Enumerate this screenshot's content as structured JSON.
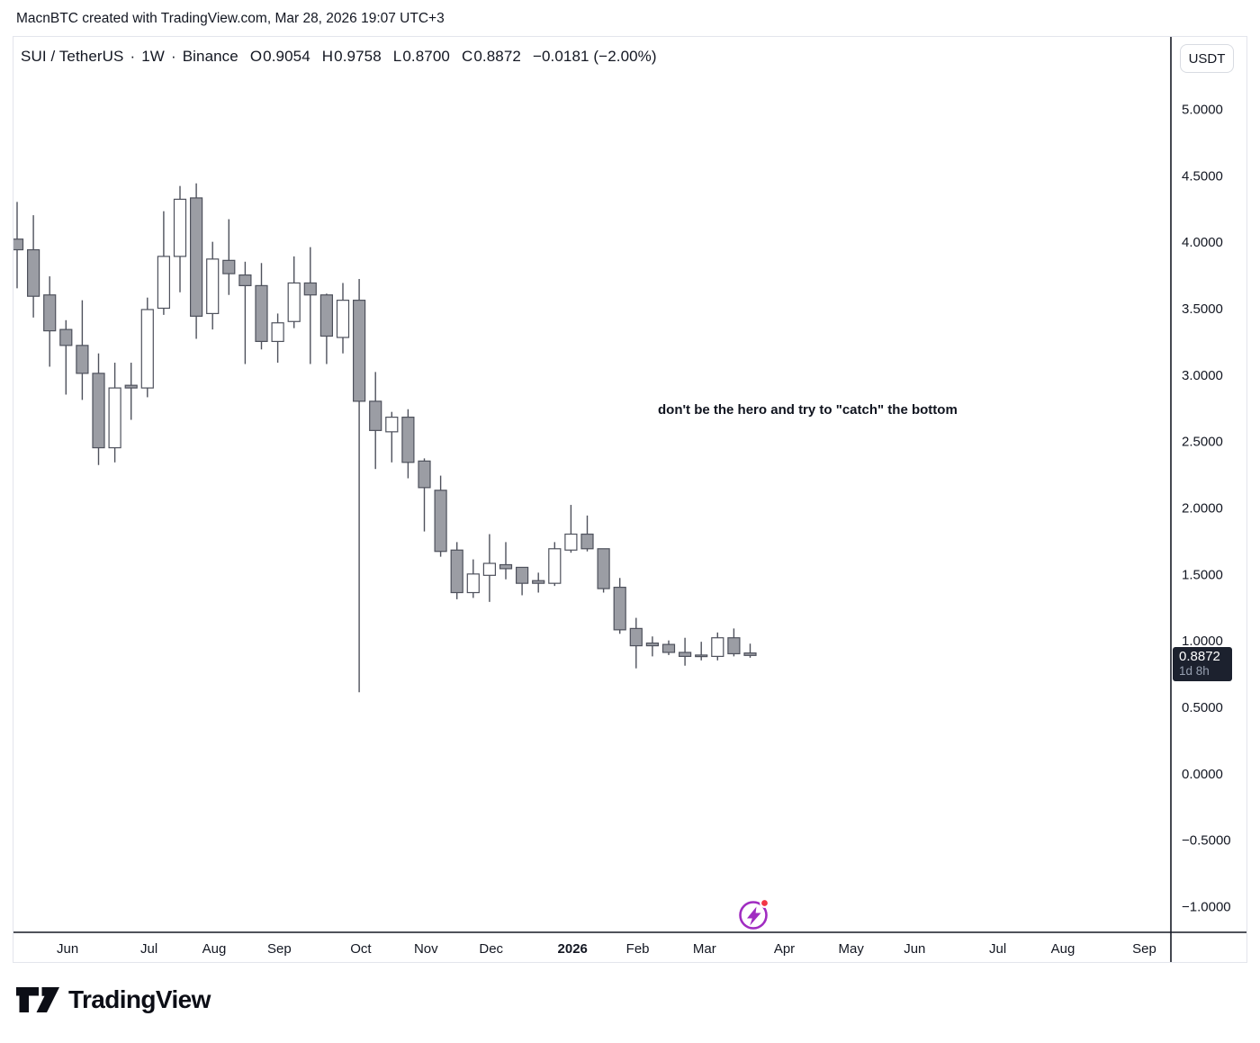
{
  "attribution": "MacnBTC created with TradingView.com, Mar 28, 2026 19:07 UTC+3",
  "symbol_header": {
    "symbol": "SUI / TetherUS",
    "separator": "·",
    "interval": "1W",
    "exchange": "Binance",
    "open_label": "O",
    "open_value": "0.9054",
    "high_label": "H",
    "high_value": "0.9758",
    "low_label": "L",
    "low_value": "0.8700",
    "close_label": "C",
    "close_value": "0.8872",
    "change_value": "−0.0181 (−2.00%)"
  },
  "annotation": {
    "text": "don't be the hero and try to \"catch\" the bottom"
  },
  "price_scale": {
    "currency": "USDT",
    "badge": {
      "price": "0.8872",
      "countdown": "1d 8h"
    }
  },
  "footer": {
    "brand": "TradingView"
  },
  "chart_data": {
    "type": "candlestick",
    "symbol": "SUI / TetherUS",
    "exchange": "Binance",
    "interval": "1W",
    "quote_currency": "USDT",
    "last_bar": {
      "open": 0.9054,
      "high": 0.9758,
      "low": 0.87,
      "close": 0.8872,
      "change": -0.0181,
      "change_pct": -2.0
    },
    "annotation": "don't be the hero and try to \"catch\" the bottom",
    "grid": "off",
    "y_axis": {
      "range": [
        -1.25,
        5.3
      ],
      "tick_interval": 0.5,
      "ticks": [
        "5.0000",
        "4.5000",
        "4.0000",
        "3.5000",
        "3.0000",
        "2.5000",
        "2.0000",
        "1.5000",
        "1.0000",
        "0.5000",
        "0.0000",
        "−0.5000",
        "−1.0000"
      ],
      "first_tick_price": 5.0
    },
    "x_axis": {
      "unit": "week",
      "labels": [
        {
          "text": "Jun",
          "week": 3.1,
          "bold": false
        },
        {
          "text": "Jul",
          "week": 8.1,
          "bold": false
        },
        {
          "text": "Aug",
          "week": 12.1,
          "bold": false
        },
        {
          "text": "Sep",
          "week": 16.1,
          "bold": false
        },
        {
          "text": "Oct",
          "week": 21.1,
          "bold": false
        },
        {
          "text": "Nov",
          "week": 25.1,
          "bold": false
        },
        {
          "text": "Dec",
          "week": 29.1,
          "bold": false
        },
        {
          "text": "2026",
          "week": 34.1,
          "bold": true
        },
        {
          "text": "Feb",
          "week": 38.1,
          "bold": false
        },
        {
          "text": "Mar",
          "week": 42.2,
          "bold": false
        },
        {
          "text": "Apr",
          "week": 47.1,
          "bold": false
        },
        {
          "text": "May",
          "week": 51.2,
          "bold": false
        },
        {
          "text": "Jun",
          "week": 55.1,
          "bold": false
        },
        {
          "text": "Jul",
          "week": 60.2,
          "bold": false
        },
        {
          "text": "Aug",
          "week": 64.2,
          "bold": false
        },
        {
          "text": "Sep",
          "week": 69.2,
          "bold": false
        }
      ]
    },
    "candles": [
      [
        4.02,
        4.3,
        3.65,
        3.94
      ],
      [
        3.94,
        4.2,
        3.43,
        3.59
      ],
      [
        3.6,
        3.74,
        3.06,
        3.33
      ],
      [
        3.34,
        3.41,
        2.85,
        3.22
      ],
      [
        3.22,
        3.56,
        2.81,
        3.01
      ],
      [
        3.01,
        3.16,
        2.32,
        2.45
      ],
      [
        2.45,
        3.09,
        2.34,
        2.9
      ],
      [
        2.92,
        3.09,
        2.66,
        2.9
      ],
      [
        2.9,
        3.58,
        2.83,
        3.49
      ],
      [
        3.5,
        4.23,
        3.45,
        3.89
      ],
      [
        3.89,
        4.42,
        3.62,
        4.32
      ],
      [
        4.33,
        4.44,
        3.27,
        3.44
      ],
      [
        3.46,
        4.0,
        3.34,
        3.87
      ],
      [
        3.86,
        4.17,
        3.6,
        3.76
      ],
      [
        3.75,
        3.85,
        3.08,
        3.67
      ],
      [
        3.67,
        3.84,
        3.19,
        3.25
      ],
      [
        3.25,
        3.46,
        3.09,
        3.39
      ],
      [
        3.4,
        3.89,
        3.35,
        3.69
      ],
      [
        3.69,
        3.96,
        3.08,
        3.6
      ],
      [
        3.6,
        3.61,
        3.08,
        3.29
      ],
      [
        3.28,
        3.69,
        3.16,
        3.56
      ],
      [
        3.56,
        3.72,
        0.61,
        2.8
      ],
      [
        2.8,
        3.02,
        2.29,
        2.58
      ],
      [
        2.57,
        2.72,
        2.34,
        2.68
      ],
      [
        2.68,
        2.74,
        2.22,
        2.34
      ],
      [
        2.35,
        2.37,
        1.82,
        2.15
      ],
      [
        2.13,
        2.24,
        1.63,
        1.67
      ],
      [
        1.68,
        1.74,
        1.31,
        1.36
      ],
      [
        1.36,
        1.61,
        1.32,
        1.5
      ],
      [
        1.49,
        1.8,
        1.29,
        1.58
      ],
      [
        1.57,
        1.74,
        1.46,
        1.54
      ],
      [
        1.55,
        1.55,
        1.34,
        1.43
      ],
      [
        1.45,
        1.51,
        1.36,
        1.43
      ],
      [
        1.43,
        1.74,
        1.41,
        1.69
      ],
      [
        1.68,
        2.02,
        1.66,
        1.8
      ],
      [
        1.8,
        1.94,
        1.67,
        1.69
      ],
      [
        1.69,
        1.69,
        1.36,
        1.39
      ],
      [
        1.4,
        1.47,
        1.05,
        1.08
      ],
      [
        1.09,
        1.17,
        0.79,
        0.96
      ],
      [
        0.98,
        1.03,
        0.88,
        0.96
      ],
      [
        0.97,
        1.0,
        0.89,
        0.91
      ],
      [
        0.91,
        1.02,
        0.81,
        0.88
      ],
      [
        0.89,
        0.99,
        0.85,
        0.88
      ],
      [
        0.88,
        1.06,
        0.85,
        1.02
      ],
      [
        1.02,
        1.09,
        0.88,
        0.9
      ],
      [
        0.9054,
        0.9758,
        0.87,
        0.8872
      ]
    ],
    "colors": {
      "up_fill": "#ffffff",
      "down_fill": "#9b9da4",
      "border": "#4e515c",
      "wick": "#4e515c",
      "axis": "#161a25",
      "text": "#131722",
      "badge_bg": "#1c212e",
      "flash_purple": "#a02cc1",
      "flash_dot": "#f23645"
    }
  }
}
